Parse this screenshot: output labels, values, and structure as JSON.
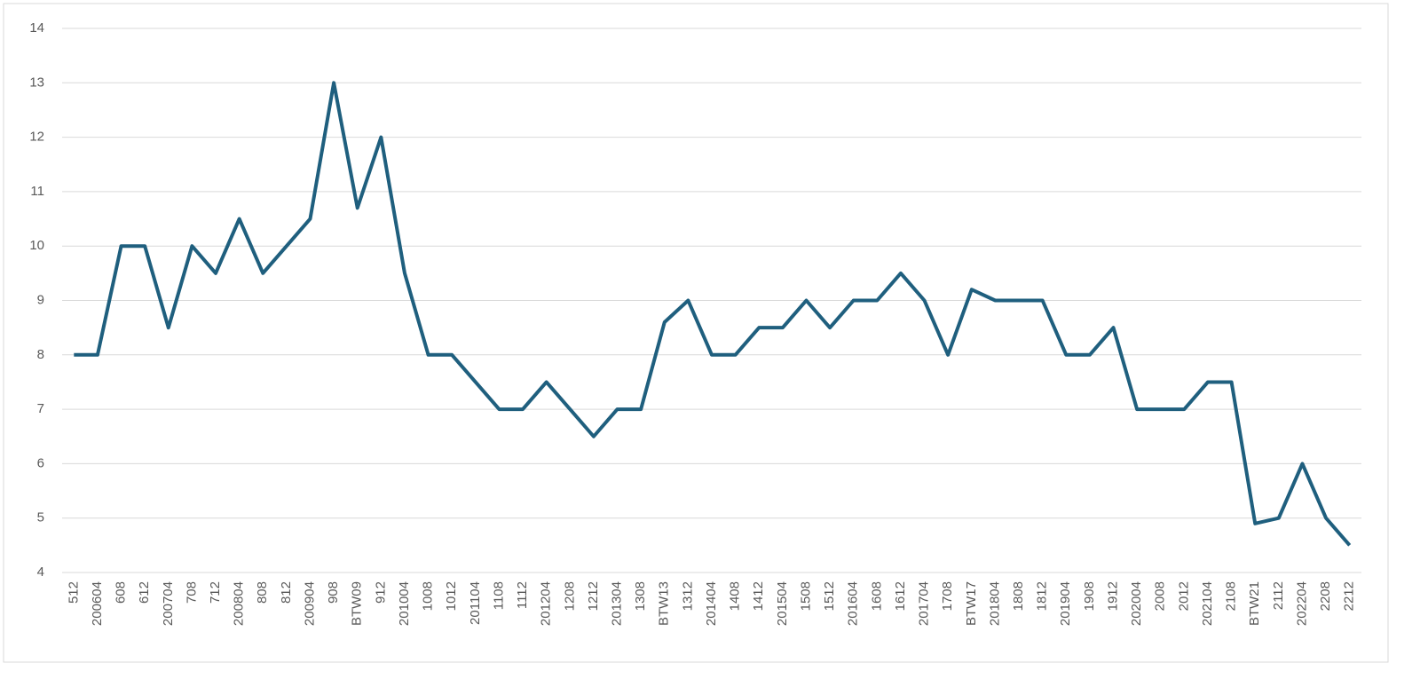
{
  "chart_data": {
    "type": "line",
    "categories": [
      "512",
      "200604",
      "608",
      "612",
      "200704",
      "708",
      "712",
      "200804",
      "808",
      "812",
      "200904",
      "908",
      "BTW09",
      "912",
      "201004",
      "1008",
      "1012",
      "201104",
      "1108",
      "1112",
      "201204",
      "1208",
      "1212",
      "201304",
      "1308",
      "BTW13",
      "1312",
      "201404",
      "1408",
      "1412",
      "201504",
      "1508",
      "1512",
      "201604",
      "1608",
      "1612",
      "201704",
      "1708",
      "BTW17",
      "201804",
      "1808",
      "1812",
      "201904",
      "1908",
      "1912",
      "202004",
      "2008",
      "2012",
      "202104",
      "2108",
      "BTW21",
      "2112",
      "202204",
      "2208",
      "2212"
    ],
    "series": [
      {
        "color": "#1f5f7e",
        "values": [
          8,
          8,
          10,
          10,
          8.5,
          10,
          9.5,
          10.5,
          9.5,
          10,
          10.5,
          13,
          10.7,
          12,
          9.5,
          8,
          8,
          7.5,
          7,
          7,
          7.5,
          7,
          6.5,
          7,
          7,
          8.6,
          9,
          8,
          8,
          8.5,
          8.5,
          9,
          8.5,
          9,
          9,
          9.5,
          9,
          8,
          9.2,
          9,
          9,
          9,
          8,
          8,
          8.5,
          7,
          7,
          7,
          7.5,
          7.5,
          4.9,
          5,
          6,
          5,
          4.5
        ]
      }
    ],
    "ylim": [
      4,
      14
    ],
    "yticks": [
      4,
      5,
      6,
      7,
      8,
      9,
      10,
      11,
      12,
      13,
      14
    ],
    "grid": true
  }
}
